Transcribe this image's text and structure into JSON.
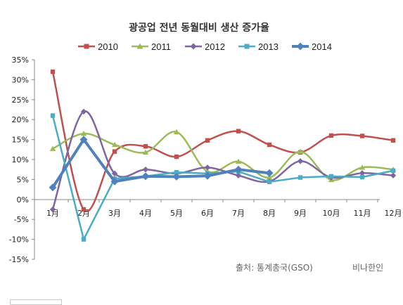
{
  "chart_data": {
    "type": "line",
    "title": "광공업 전년 동월대비 생산 증가율",
    "categories": [
      "1月",
      "2月",
      "3月",
      "4月",
      "5月",
      "6月",
      "7月",
      "8月",
      "9月",
      "10月",
      "11月",
      "12月"
    ],
    "y_ticks": [
      "35%",
      "30%",
      "25%",
      "20%",
      "15%",
      "10%",
      "5%",
      "0%",
      "-5%",
      "-10%",
      "-15%"
    ],
    "ylim": [
      -15,
      35
    ],
    "ytick_step": 5,
    "grid": false,
    "legend": "top",
    "series": [
      {
        "name": "2010",
        "color": "#C0504D",
        "marker": "square",
        "smooth": true,
        "thick": false,
        "values": [
          32,
          -2.5,
          12,
          13.3,
          10.7,
          14.8,
          17.1,
          13.7,
          11.8,
          16,
          15.9,
          14.8
        ]
      },
      {
        "name": "2011",
        "color": "#9BBB59",
        "marker": "triangle",
        "smooth": true,
        "thick": false,
        "values": [
          12.7,
          16.5,
          13.7,
          11.8,
          16.9,
          7,
          9.5,
          5.5,
          12,
          4.9,
          8,
          7.5
        ]
      },
      {
        "name": "2012",
        "color": "#8064A2",
        "marker": "diamond",
        "smooth": true,
        "thick": false,
        "values": [
          -2.5,
          22,
          6.5,
          7.5,
          6.5,
          8,
          6,
          4.5,
          9.6,
          5.5,
          6.6,
          6
        ]
      },
      {
        "name": "2013",
        "color": "#4BACC6",
        "marker": "square",
        "smooth": false,
        "thick": false,
        "values": [
          21,
          -10,
          5.2,
          5.8,
          6.8,
          6.5,
          7,
          4.4,
          5.5,
          5.8,
          5.6,
          7.2
        ]
      },
      {
        "name": "2014",
        "color": "#4F81BD",
        "marker": "diamond",
        "smooth": false,
        "thick": true,
        "values": [
          3,
          15,
          4.5,
          5.8,
          5.7,
          5.9,
          7.5,
          6.6,
          null,
          null,
          null,
          null
        ]
      }
    ],
    "source": "출처: 통계총국(GSO)",
    "watermark": "비나한인"
  }
}
